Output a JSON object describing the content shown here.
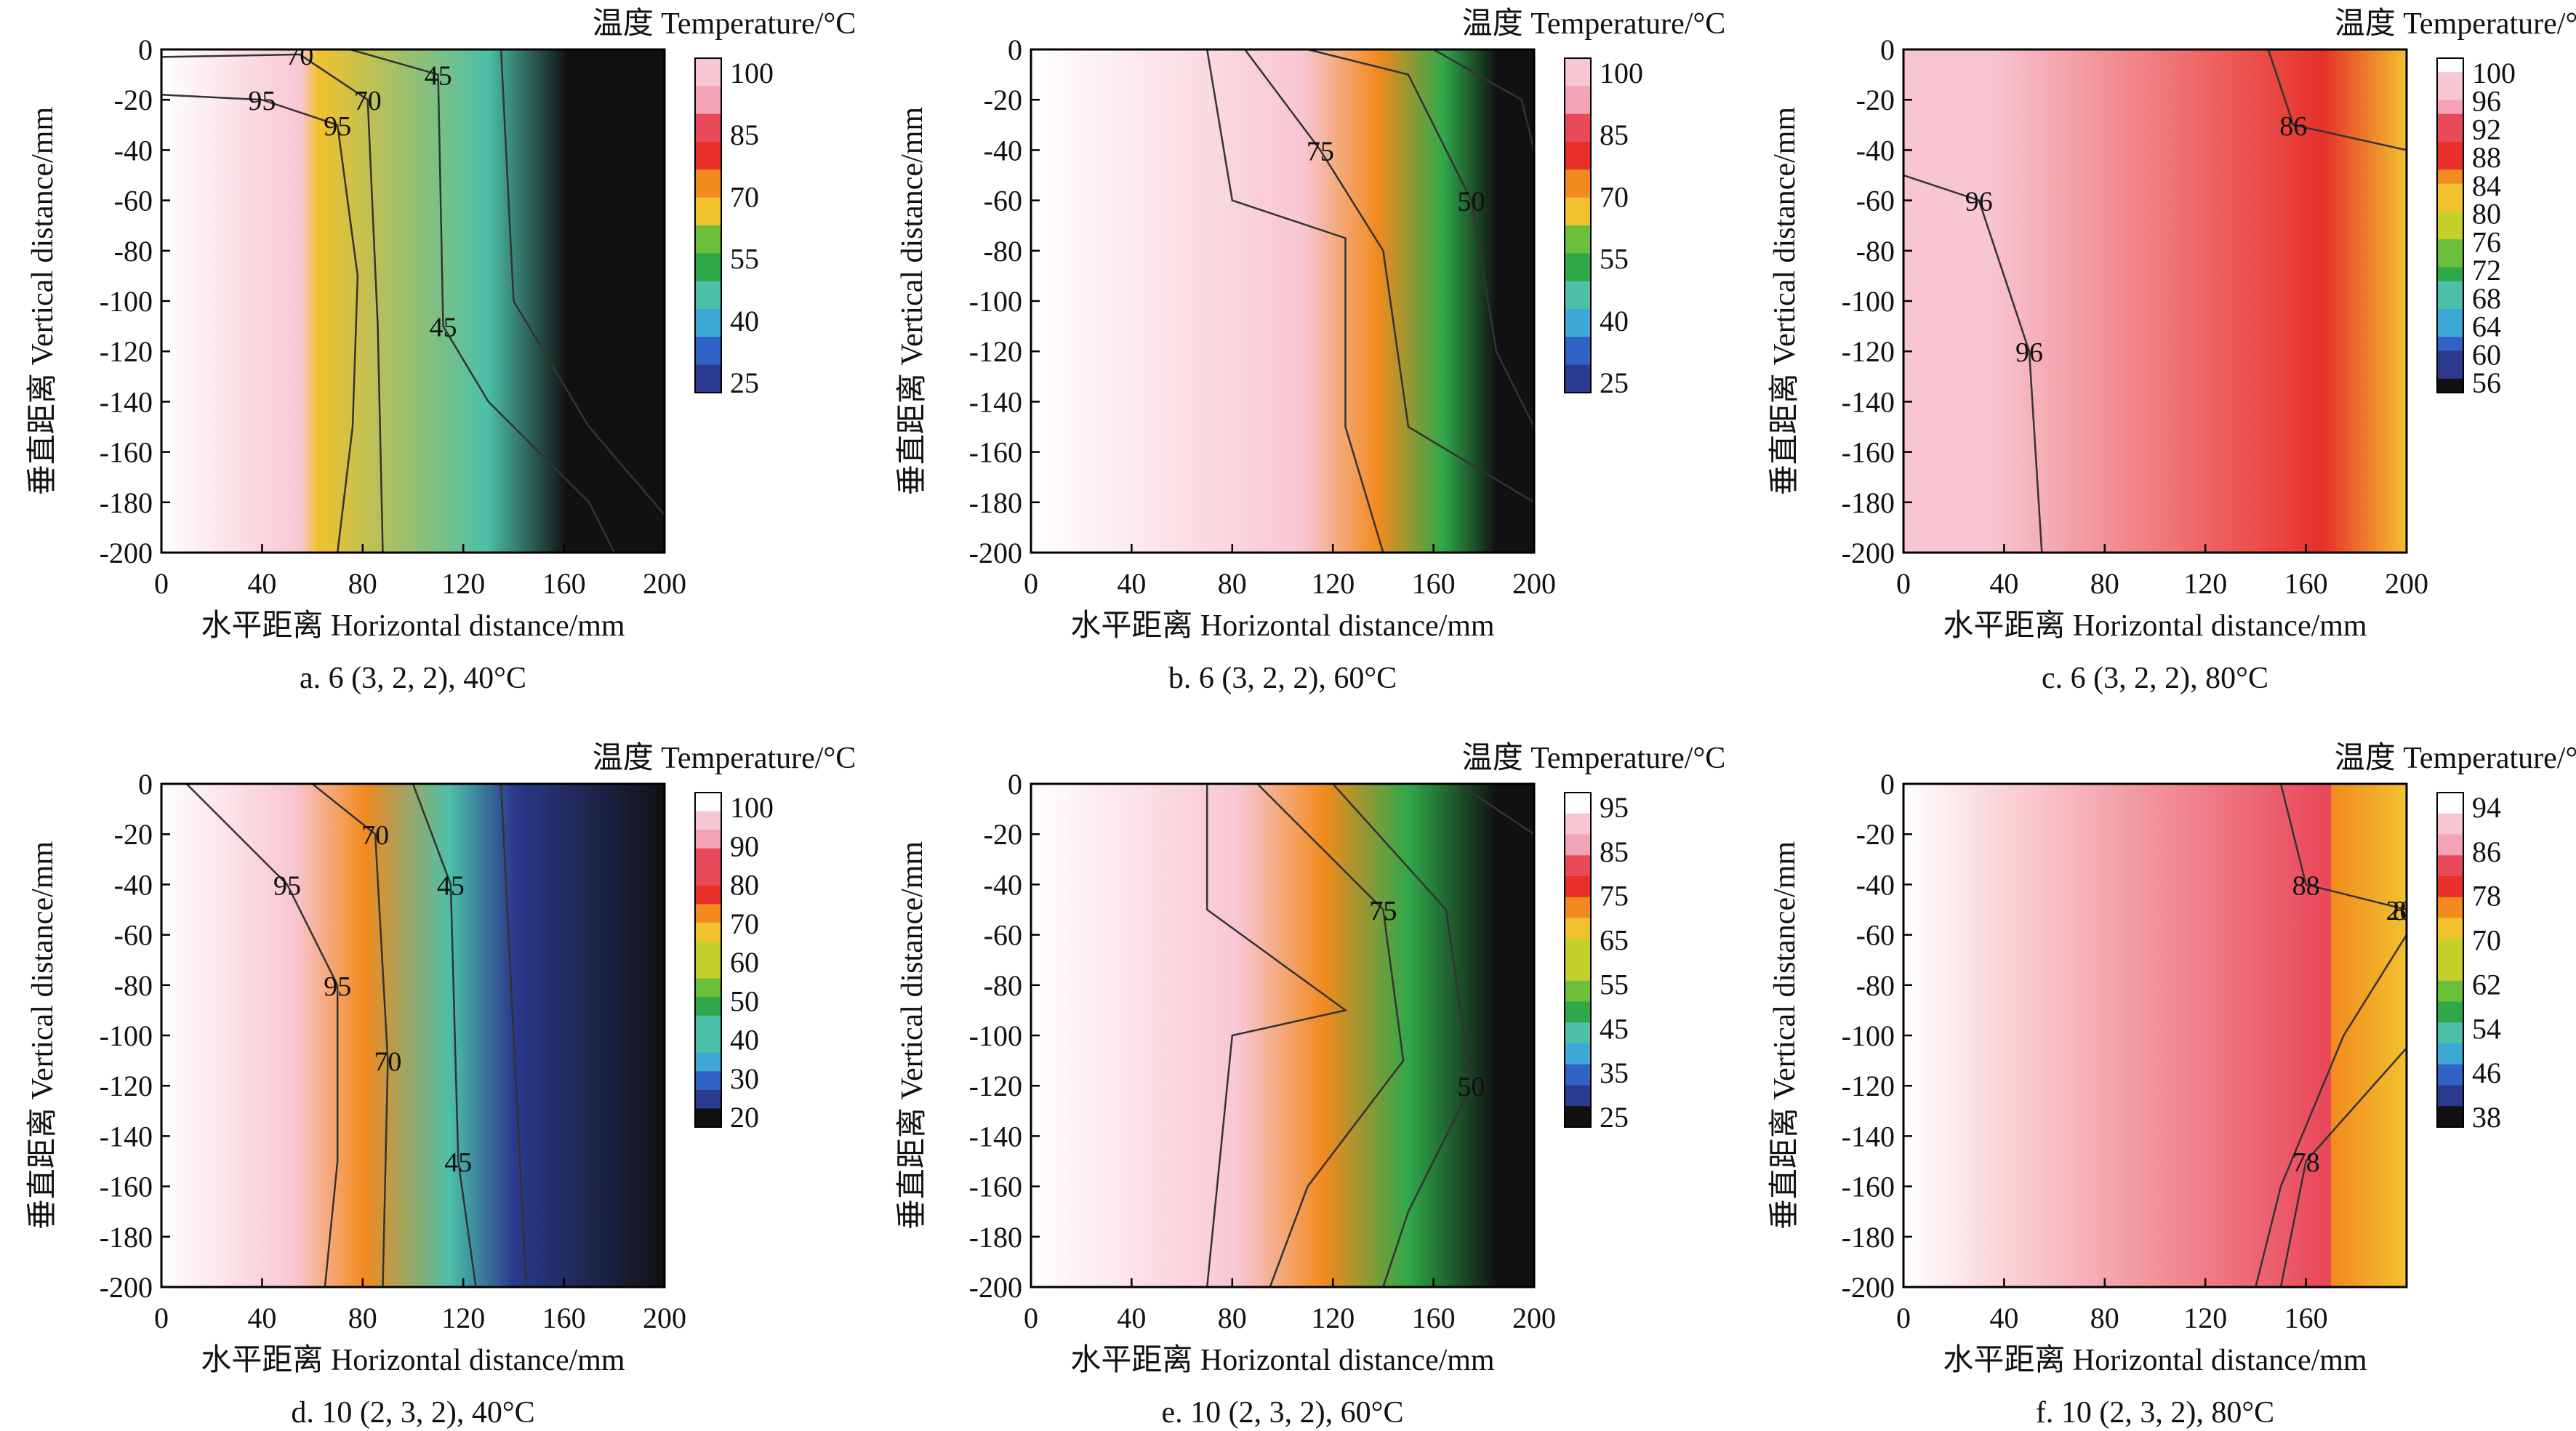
{
  "figure": {
    "panels": [
      {
        "id": "a",
        "caption": "a. 6 (3, 2, 2), 40°C",
        "chart_data": {
          "type": "heatmap",
          "title": "",
          "xlabel": "水平距离 Horizontal distance/mm",
          "ylabel": "垂直距离 Vertical distance/mm",
          "xlim": [
            0,
            200
          ],
          "ylim": [
            -200,
            0
          ],
          "x_ticks": [
            0,
            40,
            80,
            120,
            160,
            200
          ],
          "y_ticks": [
            0,
            -20,
            -40,
            -60,
            -80,
            -100,
            -120,
            -140,
            -160,
            -180,
            -200
          ],
          "colorbar": {
            "title": "温度 Temperature/°C",
            "range": [
              25,
              100
            ],
            "labels": [
              "100",
              "85",
              "70",
              "55",
              "40",
              "25"
            ]
          },
          "contour_labels": [
            "95",
            "70",
            "45",
            "95",
            "70",
            "45"
          ],
          "fronts": [
            {
              "value": 95,
              "points": [
                [
                  0,
                  -18
                ],
                [
                  40,
                  -20
                ],
                [
                  70,
                  -30
                ],
                [
                  78,
                  -90
                ],
                [
                  76,
                  -150
                ],
                [
                  70,
                  -200
                ]
              ]
            },
            {
              "value": 70,
              "points": [
                [
                  0,
                  -3
                ],
                [
                  55,
                  -2
                ],
                [
                  82,
                  -20
                ],
                [
                  86,
                  -110
                ],
                [
                  88,
                  -200
                ]
              ]
            },
            {
              "value": 45,
              "points": [
                [
                  75,
                  0
                ],
                [
                  110,
                  -10
                ],
                [
                  112,
                  -110
                ],
                [
                  130,
                  -140
                ],
                [
                  170,
                  -180
                ],
                [
                  180,
                  -200
                ]
              ]
            },
            {
              "value": 25,
              "points": [
                [
                  135,
                  0
                ],
                [
                  140,
                  -100
                ],
                [
                  170,
                  -150
                ],
                [
                  200,
                  -185
                ]
              ]
            }
          ]
        }
      },
      {
        "id": "b",
        "caption": "b. 6 (3, 2, 2), 60°C",
        "chart_data": {
          "type": "heatmap",
          "title": "",
          "xlabel": "水平距离 Horizontal distance/mm",
          "ylabel": "垂直距离 Vertical distance/mm",
          "xlim": [
            0,
            200
          ],
          "ylim": [
            -200,
            0
          ],
          "x_ticks": [
            0,
            40,
            80,
            120,
            160,
            200
          ],
          "y_ticks": [
            0,
            -20,
            -40,
            -60,
            -80,
            -100,
            -120,
            -140,
            -160,
            -180,
            -200
          ],
          "colorbar": {
            "title": "温度 Temperature/°C",
            "range": [
              25,
              100
            ],
            "labels": [
              "100",
              "85",
              "70",
              "55",
              "40",
              "25"
            ]
          },
          "contour_labels": [
            "75",
            "50",
            "75",
            "50"
          ],
          "fronts": [
            {
              "value": 95,
              "points": [
                [
                  70,
                  0
                ],
                [
                  80,
                  -60
                ],
                [
                  125,
                  -75
                ],
                [
                  125,
                  -150
                ],
                [
                  140,
                  -200
                ]
              ]
            },
            {
              "value": 75,
              "points": [
                [
                  85,
                  0
                ],
                [
                  115,
                  -40
                ],
                [
                  140,
                  -80
                ],
                [
                  150,
                  -150
                ],
                [
                  200,
                  -180
                ]
              ]
            },
            {
              "value": 50,
              "points": [
                [
                  110,
                  0
                ],
                [
                  150,
                  -10
                ],
                [
                  175,
                  -60
                ],
                [
                  185,
                  -120
                ],
                [
                  200,
                  -150
                ]
              ]
            },
            {
              "value": 25,
              "points": [
                [
                  160,
                  0
                ],
                [
                  195,
                  -20
                ],
                [
                  200,
                  -40
                ]
              ]
            }
          ]
        }
      },
      {
        "id": "c",
        "caption": "c. 6 (3, 2, 2), 80°C",
        "chart_data": {
          "type": "heatmap",
          "title": "",
          "xlabel": "水平距离 Horizontal distance/mm",
          "ylabel": "垂直距离 Vertical distance/mm",
          "xlim": [
            0,
            200
          ],
          "ylim": [
            -200,
            0
          ],
          "x_ticks": [
            0,
            40,
            80,
            120,
            160,
            200
          ],
          "y_ticks": [
            0,
            -20,
            -40,
            -60,
            -80,
            -100,
            -120,
            -140,
            -160,
            -180,
            -200
          ],
          "colorbar": {
            "title": "温度 Temperature/°C",
            "range": [
              56,
              100
            ],
            "labels": [
              "100",
              "96",
              "92",
              "88",
              "84",
              "80",
              "76",
              "72",
              "68",
              "64",
              "60",
              "56"
            ]
          },
          "contour_labels": [
            "96",
            "96",
            "86"
          ],
          "fronts": [
            {
              "value": 96,
              "points": [
                [
                  0,
                  -50
                ],
                [
                  30,
                  -60
                ],
                [
                  50,
                  -120
                ],
                [
                  55,
                  -200
                ]
              ]
            },
            {
              "value": 86,
              "points": [
                [
                  145,
                  0
                ],
                [
                  155,
                  -30
                ],
                [
                  200,
                  -40
                ]
              ]
            }
          ]
        }
      },
      {
        "id": "d",
        "caption": "d. 10 (2, 3, 2), 40°C",
        "chart_data": {
          "type": "heatmap",
          "title": "",
          "xlabel": "水平距离 Horizontal distance/mm",
          "ylabel": "垂直距离 Vertical distance/mm",
          "xlim": [
            0,
            200
          ],
          "ylim": [
            -200,
            0
          ],
          "x_ticks": [
            0,
            40,
            80,
            120,
            160,
            200
          ],
          "y_ticks": [
            0,
            -20,
            -40,
            -60,
            -80,
            -100,
            -120,
            -140,
            -160,
            -180,
            -200
          ],
          "colorbar": {
            "title": "温度 Temperature/°C",
            "range": [
              20,
              100
            ],
            "labels": [
              "100",
              "90",
              "80",
              "70",
              "60",
              "50",
              "40",
              "30",
              "20"
            ]
          },
          "contour_labels": [
            "95",
            "70",
            "45",
            "95",
            "70",
            "45"
          ],
          "fronts": [
            {
              "value": 95,
              "points": [
                [
                  10,
                  0
                ],
                [
                  50,
                  -40
                ],
                [
                  70,
                  -80
                ],
                [
                  70,
                  -150
                ],
                [
                  65,
                  -200
                ]
              ]
            },
            {
              "value": 70,
              "points": [
                [
                  60,
                  0
                ],
                [
                  85,
                  -20
                ],
                [
                  90,
                  -110
                ],
                [
                  88,
                  -200
                ]
              ]
            },
            {
              "value": 45,
              "points": [
                [
                  100,
                  0
                ],
                [
                  115,
                  -40
                ],
                [
                  118,
                  -150
                ],
                [
                  125,
                  -200
                ]
              ]
            },
            {
              "value": 25,
              "points": [
                [
                  135,
                  0
                ],
                [
                  140,
                  -100
                ],
                [
                  145,
                  -200
                ]
              ]
            }
          ]
        }
      },
      {
        "id": "e",
        "caption": "e. 10 (2, 3, 2), 60°C",
        "chart_data": {
          "type": "heatmap",
          "title": "",
          "xlabel": "水平距离 Horizontal distance/mm",
          "ylabel": "垂直距离 Vertical distance/mm",
          "xlim": [
            0,
            200
          ],
          "ylim": [
            -200,
            0
          ],
          "x_ticks": [
            0,
            40,
            80,
            120,
            160,
            200
          ],
          "y_ticks": [
            0,
            -20,
            -40,
            -60,
            -80,
            -100,
            -120,
            -140,
            -160,
            -180,
            -200
          ],
          "colorbar": {
            "title": "温度 Temperature/°C",
            "range": [
              25,
              100
            ],
            "labels": [
              "95",
              "85",
              "75",
              "65",
              "55",
              "45",
              "35",
              "25"
            ]
          },
          "contour_labels": [
            "75",
            "50",
            "75",
            "50",
            "75",
            "50"
          ],
          "fronts": [
            {
              "value": 95,
              "points": [
                [
                  70,
                  0
                ],
                [
                  70,
                  -50
                ],
                [
                  125,
                  -90
                ],
                [
                  80,
                  -100
                ],
                [
                  70,
                  -200
                ]
              ]
            },
            {
              "value": 75,
              "points": [
                [
                  90,
                  0
                ],
                [
                  140,
                  -50
                ],
                [
                  148,
                  -110
                ],
                [
                  110,
                  -160
                ],
                [
                  95,
                  -200
                ]
              ]
            },
            {
              "value": 50,
              "points": [
                [
                  120,
                  0
                ],
                [
                  165,
                  -50
                ],
                [
                  175,
                  -120
                ],
                [
                  150,
                  -170
                ],
                [
                  140,
                  -200
                ]
              ]
            },
            {
              "value": 25,
              "points": [
                [
                  170,
                  0
                ],
                [
                  200,
                  -20
                ]
              ]
            }
          ]
        }
      },
      {
        "id": "f",
        "caption": "f. 10 (2, 3, 2), 80°C",
        "chart_data": {
          "type": "heatmap",
          "title": "",
          "xlabel": "水平距离 Horizontal distance/mm",
          "ylabel": "垂直距离 Vertical distance/mm",
          "xlim": [
            0,
            200
          ],
          "ylim": [
            -200,
            0
          ],
          "x_ticks": [
            0,
            40,
            80,
            120,
            160,
            200
          ],
          "x_tick_labels": [
            "0",
            "40",
            "80",
            "120",
            "160",
            ""
          ],
          "y_ticks": [
            0,
            -20,
            -40,
            -60,
            -80,
            -100,
            -120,
            -140,
            -160,
            -180,
            -200
          ],
          "colorbar": {
            "title": "温度 Temperature/°C",
            "range": [
              38,
              100
            ],
            "labels": [
              "94",
              "86",
              "78",
              "70",
              "62",
              "54",
              "46",
              "38"
            ]
          },
          "contour_labels": [
            "88",
            "88",
            "78",
            "200"
          ],
          "fronts": [
            {
              "value": 88,
              "points": [
                [
                  150,
                  0
                ],
                [
                  160,
                  -40
                ],
                [
                  200,
                  -50
                ]
              ]
            },
            {
              "value": 88,
              "points": [
                [
                  200,
                  -60
                ],
                [
                  175,
                  -100
                ],
                [
                  150,
                  -160
                ],
                [
                  140,
                  -200
                ]
              ]
            },
            {
              "value": 78,
              "points": [
                [
                  200,
                  -105
                ],
                [
                  160,
                  -150
                ],
                [
                  150,
                  -200
                ]
              ]
            }
          ]
        }
      }
    ]
  },
  "colors": {
    "ramp": [
      "#111111",
      "#2b3a8c",
      "#2f62c4",
      "#3ea8d6",
      "#4cc0a8",
      "#2fa84a",
      "#6bbf3a",
      "#c5d12a",
      "#f2c12e",
      "#f28a1e",
      "#e8302a",
      "#e94a5a",
      "#f2a3b6",
      "#f8c6d2",
      "#ffffff"
    ]
  }
}
